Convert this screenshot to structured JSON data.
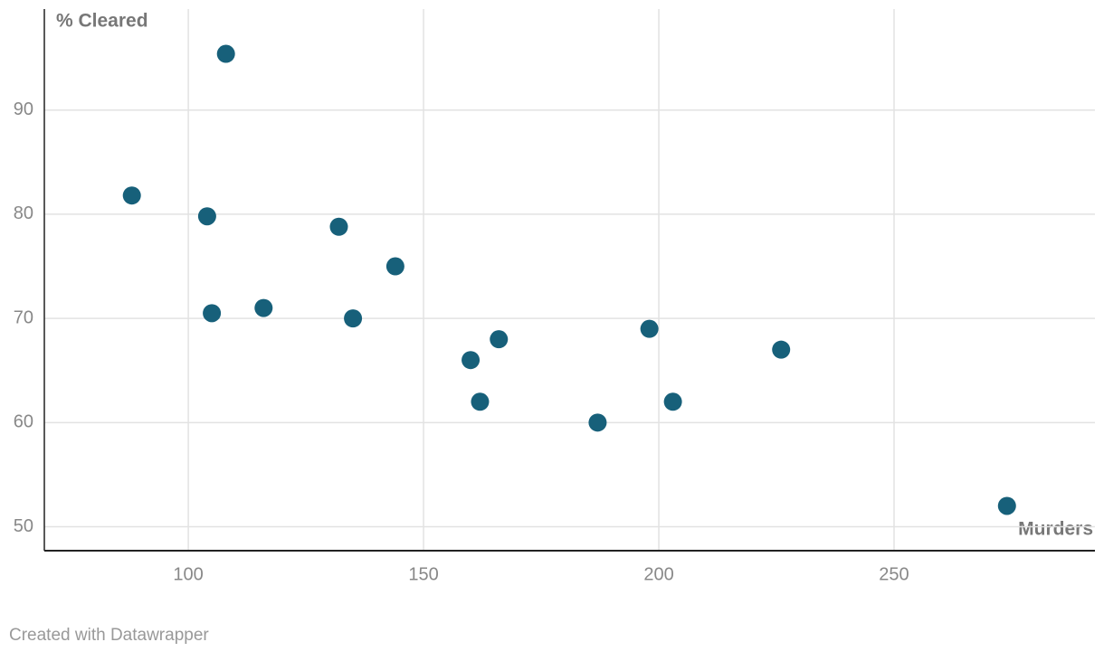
{
  "chart_data": {
    "type": "scatter",
    "x_label": "Murders",
    "y_label": "% Cleared",
    "x": [
      88,
      108,
      104,
      105,
      116,
      132,
      135,
      144,
      160,
      162,
      166,
      187,
      198,
      203,
      226,
      274
    ],
    "y": [
      81.8,
      95.4,
      79.8,
      70.5,
      71,
      78.8,
      70,
      75,
      66,
      62,
      68,
      60,
      69,
      62,
      67,
      52
    ],
    "color": "#17607a",
    "xlim": [
      69.4,
      292.7
    ],
    "xticks": [
      100,
      150,
      200,
      250
    ],
    "ylim": [
      47.7,
      99.7
    ],
    "yticks": [
      50,
      60,
      70,
      80,
      90
    ],
    "grid": true
  },
  "footer": "Created with Datawrapper"
}
